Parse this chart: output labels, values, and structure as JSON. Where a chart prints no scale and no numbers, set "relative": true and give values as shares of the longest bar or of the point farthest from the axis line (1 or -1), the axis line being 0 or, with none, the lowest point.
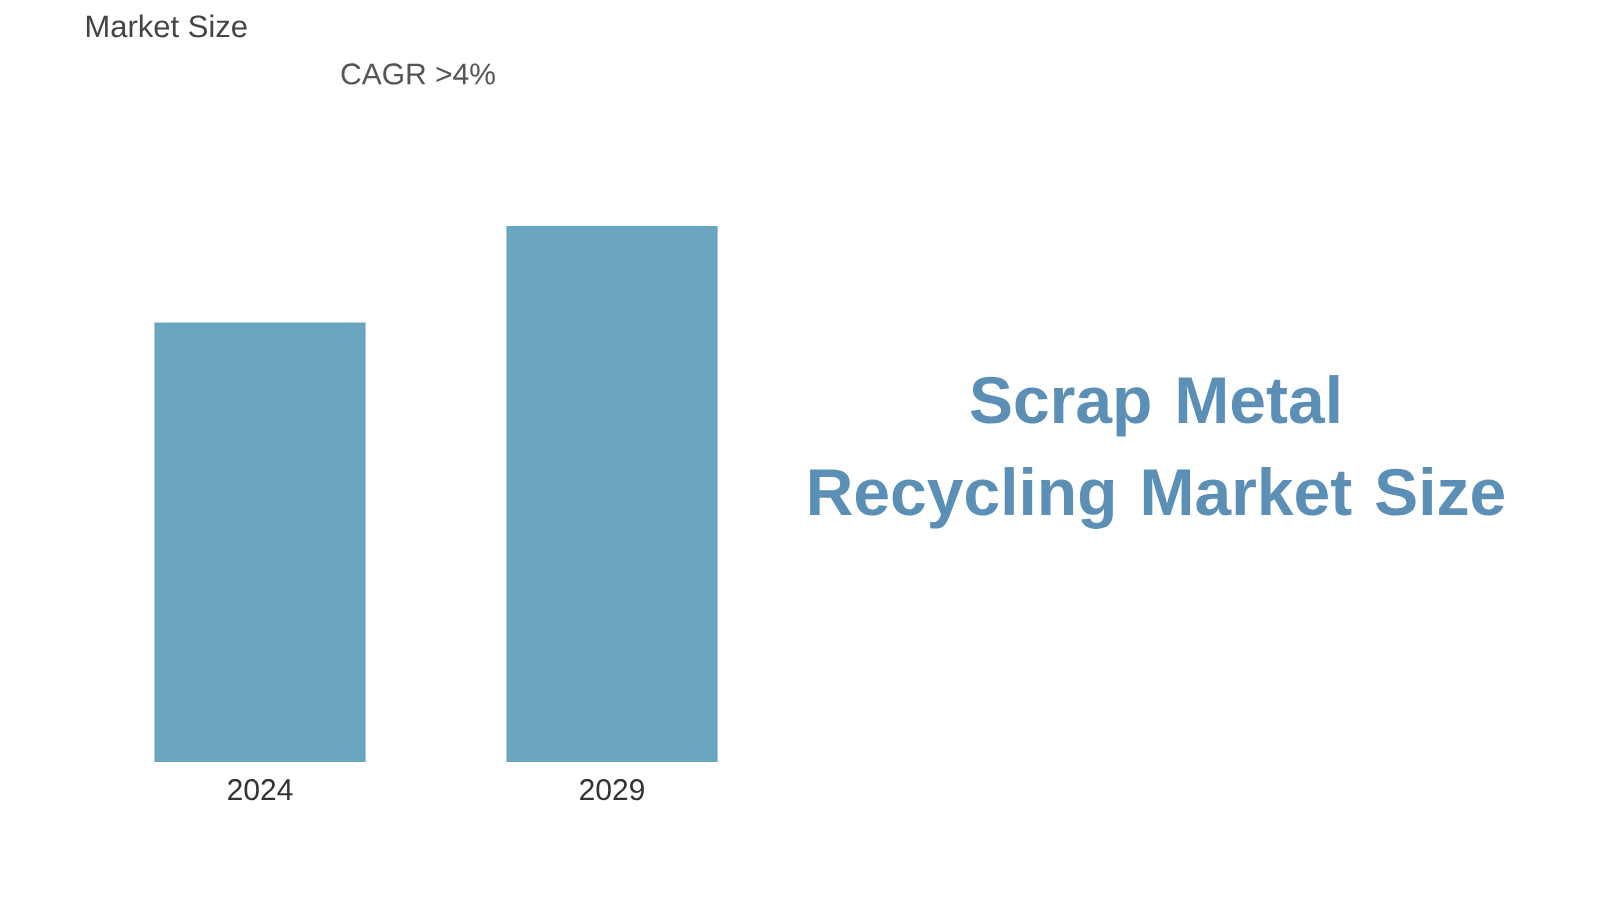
{
  "chart_data": {
    "type": "bar",
    "title": "Scrap Metal Recycling Market Size",
    "annotations": [
      "Market Size",
      "CAGR >4%"
    ],
    "categories": [
      "2024",
      "2029"
    ],
    "values": [
      0.82,
      1
    ],
    "color": "#6aa6c0",
    "relative": true
  }
}
